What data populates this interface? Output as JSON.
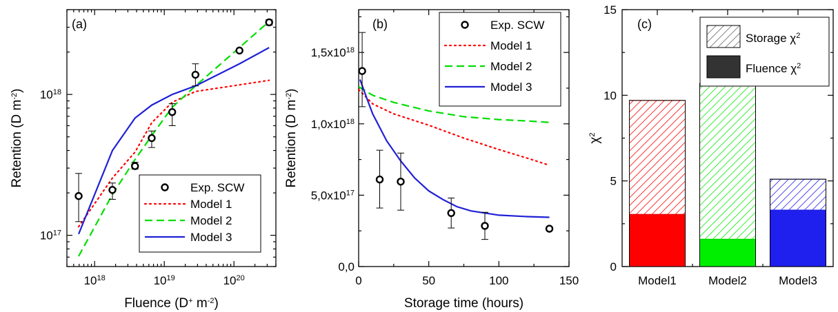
{
  "chart_data": [
    {
      "panel": "(a)",
      "type": "line",
      "xlabel": {
        "base": "Fluence (D",
        "sup1": "+",
        "mid": " m",
        "sup2": "-2",
        "end": ")"
      },
      "ylabel": {
        "base": "Retention (D m",
        "sup": "-2",
        "end": ")"
      },
      "xscale": "log",
      "yscale": "log",
      "xlim": [
        4e+17,
        4e+20
      ],
      "ylim": [
        6e+16,
        4e+18
      ],
      "x_ticks": [
        {
          "base": "10",
          "exp": "18",
          "value": 1e+18
        },
        {
          "base": "10",
          "exp": "19",
          "value": 1e+19
        },
        {
          "base": "10",
          "exp": "20",
          "value": 1e+20
        }
      ],
      "y_ticks": [
        {
          "base": "10",
          "exp": "17",
          "value": 1e+17
        },
        {
          "base": "10",
          "exp": "18",
          "value": 1e+18
        }
      ],
      "legend": [
        "Exp. SCW",
        "Model 1",
        "Model 2",
        "Model 3"
      ],
      "legend_position": "bottom-right",
      "experiment": {
        "name": "Exp. SCW",
        "x": [
          5.9e+17,
          1.8e+18,
          3.8e+18,
          6.6e+18,
          1.3e+19,
          2.8e+19,
          1.2e+20,
          3.2e+20
        ],
        "y": [
          1.9e+17,
          2.1e+17,
          3.1e+17,
          4.9e+17,
          7.5e+17,
          1.38e+18,
          2.05e+18,
          3.25e+18
        ],
        "err_low": [
          1.25e+17,
          1.8e+17,
          2.95e+17,
          4.2e+17,
          6e+17,
          1.15e+18,
          2.05e+18,
          3.1e+18
        ],
        "err_high": [
          2.75e+17,
          2.35e+17,
          3.3e+17,
          5.5e+17,
          8.6e+17,
          1.65e+18,
          2.05e+18,
          3.4e+18
        ]
      },
      "series": [
        {
          "name": "Model 1",
          "color": "#ff0000",
          "style": "dotted",
          "x": [
            5.9e+17,
            1.8e+18,
            3.8e+18,
            6.6e+18,
            1.3e+19,
            2.8e+19,
            1.2e+20,
            3.2e+20
          ],
          "y": [
            1.15e+17,
            2.55e+17,
            3.9e+17,
            6.3e+17,
            8.8e+17,
            1.05e+18,
            1.17e+18,
            1.26e+18
          ]
        },
        {
          "name": "Model 2",
          "color": "#00dd00",
          "style": "dashed",
          "x": [
            5.9e+17,
            1.8e+18,
            3.8e+18,
            6.6e+18,
            1.3e+19,
            2.8e+19,
            1.2e+20,
            3.2e+20
          ],
          "y": [
            7.1e+16,
            1.95e+17,
            3.45e+17,
            5.1e+17,
            8.1e+17,
            1.15e+18,
            2.15e+18,
            3.3e+18
          ]
        },
        {
          "name": "Model 3",
          "color": "#1f1fd6",
          "style": "solid",
          "x": [
            5.9e+17,
            1.8e+18,
            3.8e+18,
            6.6e+18,
            1.3e+19,
            2.8e+19,
            1.2e+20,
            3.2e+20
          ],
          "y": [
            1.02e+17,
            4e+17,
            6.8e+17,
            8.4e+17,
            1e+18,
            1.15e+18,
            1.65e+18,
            2.15e+18
          ]
        }
      ]
    },
    {
      "panel": "(b)",
      "type": "line",
      "xlabel": "Storage time (hours)",
      "ylabel": {
        "base": "Retention (D m",
        "sup": "-2",
        "end": ")"
      },
      "xlim": [
        0,
        150
      ],
      "ylim": [
        0,
        1.8e+18
      ],
      "x_ticks": [
        "0",
        "50",
        "100",
        "150"
      ],
      "y_ticks": [
        {
          "base": "0,0",
          "exp": "",
          "value": 0
        },
        {
          "base": "5,0x10",
          "exp": "17",
          "value": 5e+17
        },
        {
          "base": "1,0x10",
          "exp": "18",
          "value": 1e+18
        },
        {
          "base": "1,5x10",
          "exp": "18",
          "value": 1.5e+18
        }
      ],
      "legend": [
        "Exp. SCW",
        "Model 1",
        "Model 2",
        "Model 3"
      ],
      "legend_position": "top-right",
      "experiment": {
        "name": "Exp. SCW",
        "x": [
          2.5,
          15,
          30,
          66,
          90,
          136
        ],
        "y": [
          1.37e+18,
          6.1e+17,
          5.95e+17,
          3.75e+17,
          2.85e+17,
          2.65e+17
        ],
        "err_low": [
          1.12e+18,
          4.1e+17,
          3.95e+17,
          2.7e+17,
          1.9e+17,
          2.65e+17
        ],
        "err_high": [
          1.64e+18,
          8.15e+17,
          7.95e+17,
          4.8e+17,
          3.8e+17,
          2.65e+17
        ]
      },
      "series": [
        {
          "name": "Model 1",
          "color": "#ff0000",
          "style": "dotted",
          "x": [
            0,
            10,
            25,
            50,
            75,
            100,
            120,
            136
          ],
          "y": [
            1.24e+18,
            1.14e+18,
            1.07e+18,
            9.9e+17,
            9e+17,
            8.2e+17,
            7.6e+17,
            7.1e+17
          ]
        },
        {
          "name": "Model 2",
          "color": "#00dd00",
          "style": "dashed",
          "x": [
            0,
            10,
            25,
            50,
            75,
            100,
            120,
            136
          ],
          "y": [
            1.26e+18,
            1.2e+18,
            1.15e+18,
            1.09e+18,
            1.05e+18,
            1.03e+18,
            1.02e+18,
            1.01e+18
          ]
        },
        {
          "name": "Model 3",
          "color": "#1f1fd6",
          "style": "solid",
          "x": [
            1,
            5,
            10,
            20,
            30,
            40,
            50,
            60,
            70,
            80,
            100,
            120,
            136
          ],
          "y": [
            1.31e+18,
            1.2e+18,
            1.07e+18,
            8.8e+17,
            7.4e+17,
            6.2e+17,
            5.3e+17,
            4.7e+17,
            4.2e+17,
            3.9e+17,
            3.6e+17,
            3.5e+17,
            3.45e+17
          ]
        }
      ]
    },
    {
      "panel": "(c)",
      "type": "bar",
      "ylabel": {
        "base": "χ",
        "sup": "2"
      },
      "ylim": [
        0,
        15
      ],
      "y_ticks": [
        "0",
        "5",
        "10",
        "15"
      ],
      "categories": [
        "Model1",
        "Model2",
        "Model3"
      ],
      "legend_position": "top-right",
      "series": [
        {
          "name": "Fluence χ2",
          "label_base": "Fluence χ",
          "label_sup": "2",
          "fill": "solid",
          "values": [
            3.05,
            1.6,
            3.3
          ]
        },
        {
          "name": "Storage χ2",
          "label_base": "Storage χ",
          "label_sup": "2",
          "fill": "hatched",
          "values": [
            6.65,
            9.1,
            1.8
          ]
        }
      ],
      "colors": [
        "#ff0000",
        "#00ee00",
        "#1f1fee"
      ],
      "legend_colors": {
        "hatch": "#666666",
        "solid": "#333333"
      }
    }
  ]
}
